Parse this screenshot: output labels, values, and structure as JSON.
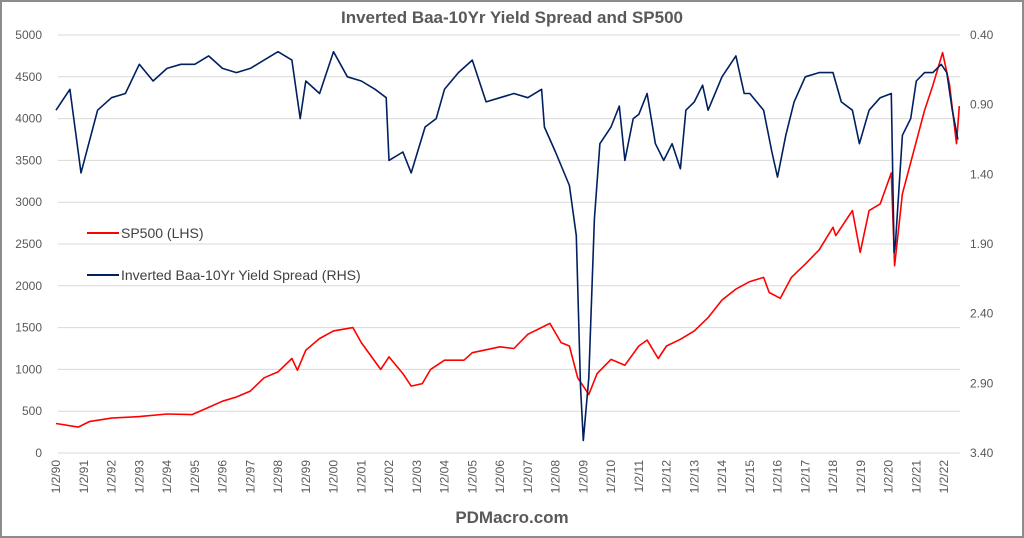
{
  "chart_data": {
    "type": "line",
    "title": "Inverted Baa-10Yr Yield Spread and SP500",
    "footer": "PDMacro.com",
    "x_tick_labels": [
      "1/2/90",
      "1/2/91",
      "1/2/92",
      "1/2/93",
      "1/2/94",
      "1/2/95",
      "1/2/96",
      "1/2/97",
      "1/2/98",
      "1/2/99",
      "1/2/00",
      "1/2/01",
      "1/2/02",
      "1/2/03",
      "1/2/04",
      "1/2/05",
      "1/2/06",
      "1/2/07",
      "1/2/08",
      "1/2/09",
      "1/2/10",
      "1/2/11",
      "1/2/12",
      "1/2/13",
      "1/2/14",
      "1/2/15",
      "1/2/16",
      "1/2/17",
      "1/2/18",
      "1/2/19",
      "1/2/20",
      "1/2/21",
      "1/2/22"
    ],
    "left_axis": {
      "ylim": [
        0,
        5000
      ],
      "ticks": [
        "0",
        "500",
        "1000",
        "1500",
        "2000",
        "2500",
        "3000",
        "3500",
        "4000",
        "4500",
        "5000"
      ]
    },
    "right_axis": {
      "ylim": [
        0.4,
        3.4
      ],
      "inverted": true,
      "ticks": [
        "0.40",
        "0.90",
        "1.40",
        "1.90",
        "2.40",
        "2.90",
        "3.40"
      ]
    },
    "grid": true,
    "legend_placement": "left-middle",
    "series": [
      {
        "name": "SP500 (LHS)",
        "axis": "left",
        "color": "#ff0000",
        "x": [
          1990.0,
          1990.8,
          1991.2,
          1992.0,
          1993.0,
          1994.0,
          1994.9,
          1995.5,
          1996.0,
          1996.5,
          1997.0,
          1997.5,
          1998.0,
          1998.5,
          1998.7,
          1999.0,
          1999.5,
          2000.0,
          2000.7,
          2001.0,
          2001.7,
          2002.0,
          2002.5,
          2002.8,
          2003.2,
          2003.5,
          2004.0,
          2004.7,
          2005.0,
          2006.0,
          2006.5,
          2007.0,
          2007.8,
          2008.2,
          2008.5,
          2008.8,
          2009.2,
          2009.5,
          2010.0,
          2010.5,
          2011.0,
          2011.3,
          2011.7,
          2012.0,
          2012.5,
          2013.0,
          2013.5,
          2014.0,
          2014.5,
          2015.0,
          2015.5,
          2015.7,
          2016.1,
          2016.5,
          2017.0,
          2017.5,
          2018.0,
          2018.1,
          2018.7,
          2018.98,
          2019.3,
          2019.7,
          2020.1,
          2020.22,
          2020.5,
          2020.9,
          2021.3,
          2021.6,
          2021.95,
          2022.2,
          2022.45,
          2022.55
        ],
        "values": [
          353,
          310,
          375,
          417,
          435,
          466,
          459,
          545,
          620,
          670,
          740,
          900,
          970,
          1130,
          990,
          1230,
          1370,
          1460,
          1500,
          1320,
          1000,
          1150,
          950,
          800,
          830,
          1000,
          1110,
          1110,
          1200,
          1270,
          1250,
          1420,
          1550,
          1320,
          1280,
          900,
          700,
          950,
          1120,
          1050,
          1280,
          1350,
          1130,
          1280,
          1360,
          1460,
          1620,
          1830,
          1960,
          2050,
          2100,
          1920,
          1850,
          2100,
          2260,
          2430,
          2700,
          2600,
          2900,
          2400,
          2900,
          2980,
          3350,
          2240,
          3100,
          3600,
          4100,
          4400,
          4790,
          4400,
          3700,
          4150
        ]
      },
      {
        "name": "Inverted Baa-10Yr Yield Spread (RHS)",
        "axis": "right",
        "color": "#002060",
        "x": [
          1990.0,
          1990.5,
          1990.9,
          1991.5,
          1992.0,
          1992.5,
          1993.0,
          1993.5,
          1994.0,
          1994.5,
          1995.0,
          1995.5,
          1996.0,
          1996.5,
          1997.0,
          1997.5,
          1998.0,
          1998.5,
          1998.8,
          1999.0,
          1999.5,
          2000.0,
          2000.5,
          2001.0,
          2001.5,
          2001.9,
          2002.0,
          2002.5,
          2002.8,
          2003.3,
          2003.7,
          2004.0,
          2004.5,
          2005.0,
          2005.5,
          2006.0,
          2006.5,
          2007.0,
          2007.5,
          2007.6,
          2008.0,
          2008.5,
          2008.75,
          2008.9,
          2009.0,
          2009.2,
          2009.4,
          2009.6,
          2010.0,
          2010.3,
          2010.5,
          2010.8,
          2011.0,
          2011.3,
          2011.6,
          2011.9,
          2012.2,
          2012.5,
          2012.7,
          2013.0,
          2013.3,
          2013.5,
          2014.0,
          2014.5,
          2014.8,
          2015.0,
          2015.5,
          2015.8,
          2016.0,
          2016.3,
          2016.6,
          2017.0,
          2017.5,
          2018.0,
          2018.3,
          2018.7,
          2018.95,
          2019.3,
          2019.7,
          2020.1,
          2020.2,
          2020.25,
          2020.5,
          2020.8,
          2021.0,
          2021.3,
          2021.6,
          2021.9,
          2022.1,
          2022.3,
          2022.5
        ],
        "values": [
          0.94,
          0.79,
          1.39,
          0.94,
          0.85,
          0.82,
          0.61,
          0.73,
          0.64,
          0.61,
          0.61,
          0.55,
          0.64,
          0.67,
          0.64,
          0.58,
          0.52,
          0.58,
          1.0,
          0.73,
          0.82,
          0.52,
          0.7,
          0.73,
          0.79,
          0.85,
          1.3,
          1.24,
          1.39,
          1.06,
          1.0,
          0.79,
          0.67,
          0.58,
          0.88,
          0.85,
          0.82,
          0.85,
          0.79,
          1.06,
          1.24,
          1.48,
          1.84,
          2.92,
          3.31,
          2.86,
          1.72,
          1.18,
          1.06,
          0.91,
          1.3,
          1.0,
          0.97,
          0.82,
          1.18,
          1.3,
          1.18,
          1.36,
          0.94,
          0.88,
          0.76,
          0.94,
          0.7,
          0.55,
          0.82,
          0.82,
          0.94,
          1.24,
          1.42,
          1.12,
          0.88,
          0.7,
          0.67,
          0.67,
          0.88,
          0.94,
          1.18,
          0.94,
          0.85,
          0.82,
          1.96,
          1.9,
          1.12,
          1.0,
          0.73,
          0.67,
          0.67,
          0.61,
          0.67,
          0.94,
          1.15
        ]
      }
    ]
  }
}
